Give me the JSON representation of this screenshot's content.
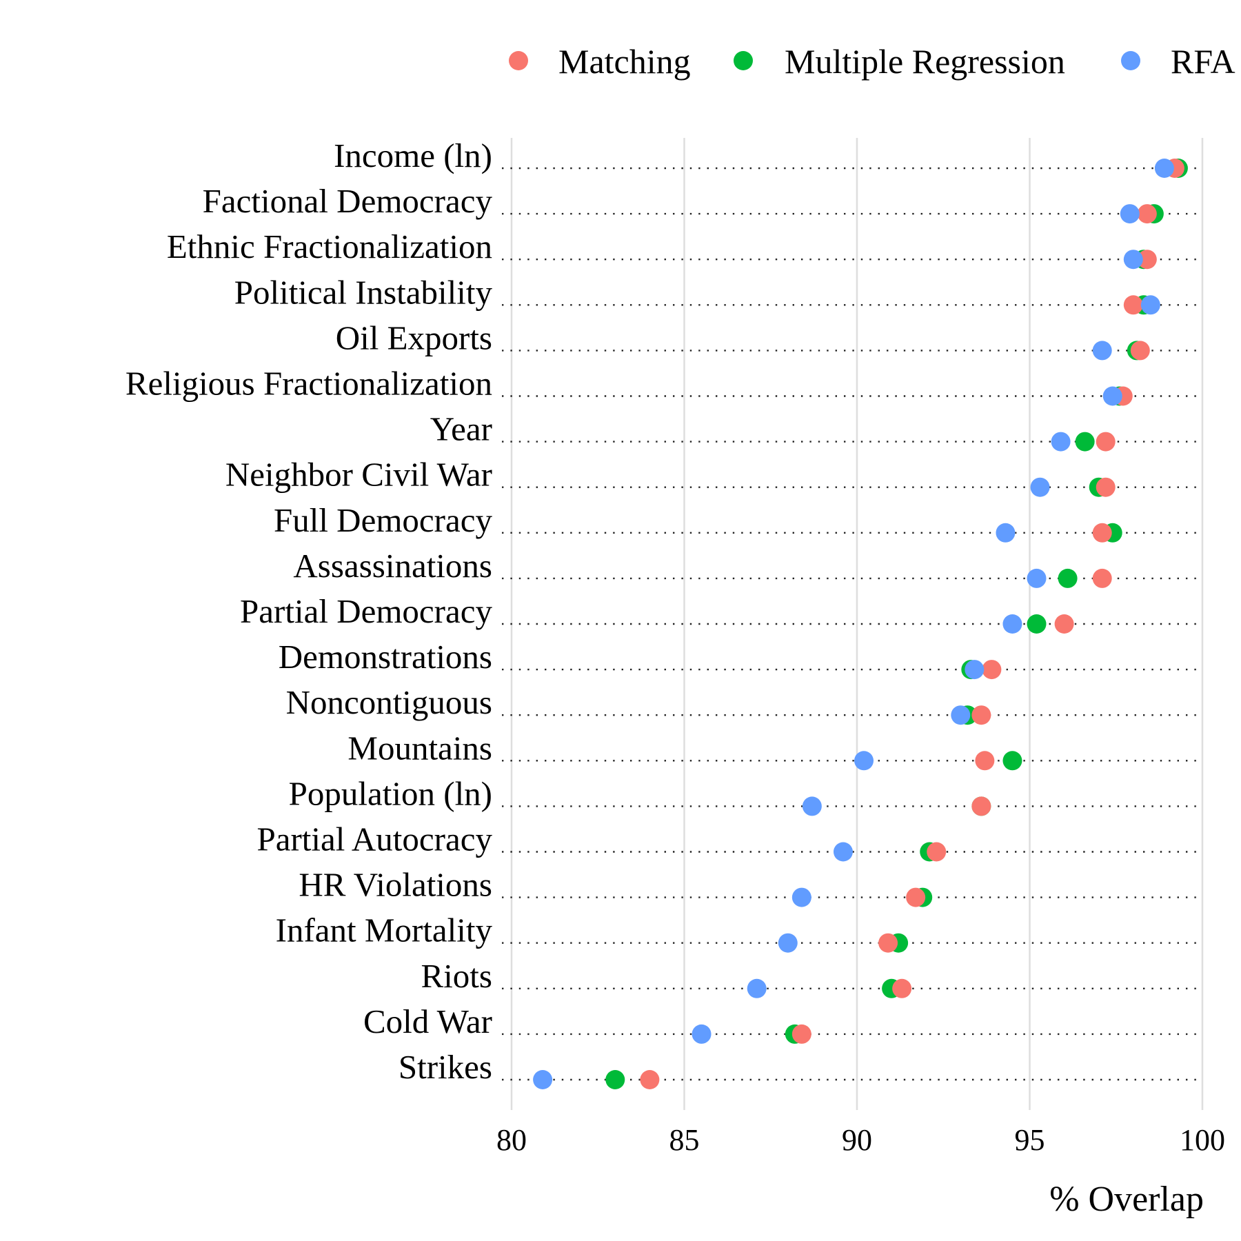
{
  "chart_data": {
    "type": "scatter",
    "xlabel": "% Overlap",
    "xlim": [
      80,
      100
    ],
    "x_ticks": [
      80,
      85,
      90,
      95,
      100
    ],
    "legend_position": "top-right",
    "grid": "vertical",
    "categories": [
      "Income (ln)",
      "Factional Democracy",
      "Ethnic Fractionalization",
      "Political Instability",
      "Oil Exports",
      "Religious Fractionalization",
      "Year",
      "Neighbor Civil War",
      "Full Democracy",
      "Assassinations",
      "Partial Democracy",
      "Demonstrations",
      "Noncontiguous",
      "Mountains",
      "Population (ln)",
      "Partial Autocracy",
      "HR Violations",
      "Infant Mortality",
      "Riots",
      "Cold War",
      "Strikes"
    ],
    "series": [
      {
        "name": "Multiple Regression",
        "color": "#00ba38",
        "values": [
          99.3,
          98.6,
          98.3,
          98.3,
          98.1,
          97.6,
          96.6,
          97.0,
          97.4,
          96.1,
          95.2,
          93.3,
          93.2,
          94.5,
          93.6,
          92.1,
          91.9,
          91.2,
          91.0,
          88.2,
          83.0
        ]
      },
      {
        "name": "Matching",
        "color": "#f8766d",
        "values": [
          99.2,
          98.4,
          98.4,
          98.0,
          98.2,
          97.7,
          97.2,
          97.2,
          97.1,
          97.1,
          96.0,
          93.9,
          93.6,
          93.7,
          93.6,
          92.3,
          91.7,
          90.9,
          91.3,
          88.4,
          84.0
        ]
      },
      {
        "name": "RFA",
        "color": "#619cff",
        "values": [
          98.9,
          97.9,
          98.0,
          98.5,
          97.1,
          97.4,
          95.9,
          95.3,
          94.3,
          95.2,
          94.5,
          93.4,
          93.0,
          90.2,
          88.7,
          89.6,
          88.4,
          88.0,
          87.1,
          85.5,
          80.9
        ]
      }
    ],
    "legend_order": [
      "Matching",
      "Multiple Regression",
      "RFA"
    ]
  }
}
